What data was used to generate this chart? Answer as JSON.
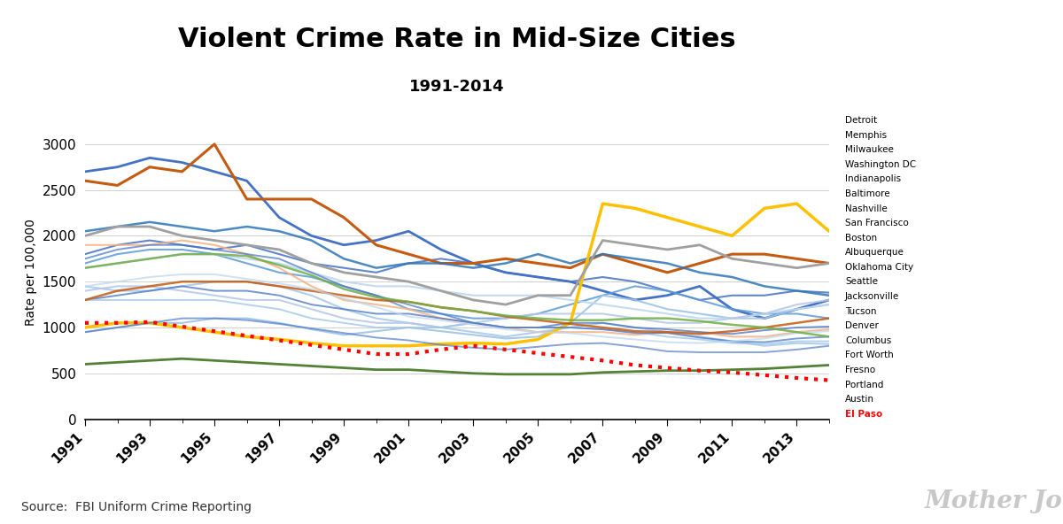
{
  "title": "Violent Crime Rate in Mid-Size Cities",
  "subtitle": "1991-2014",
  "ylabel": "Rate per 100,000",
  "source": "Source:  FBI Uniform Crime Reporting",
  "watermark": "Mother Jones",
  "years": [
    1991,
    1992,
    1993,
    1994,
    1995,
    1996,
    1997,
    1998,
    1999,
    2000,
    2001,
    2002,
    2003,
    2004,
    2005,
    2006,
    2007,
    2008,
    2009,
    2010,
    2011,
    2012,
    2013,
    2014
  ],
  "cities": {
    "Detroit": [
      2700,
      2750,
      2850,
      2800,
      2700,
      2600,
      2200,
      2000,
      1900,
      1950,
      2050,
      1850,
      1700,
      1600,
      1550,
      1500,
      1400,
      1300,
      1350,
      1450,
      1200,
      1100,
      1200,
      1300
    ],
    "Memphis": [
      1800,
      1900,
      1950,
      1900,
      1850,
      1900,
      1800,
      1700,
      1650,
      1600,
      1700,
      1750,
      1700,
      1600,
      1550,
      1500,
      1550,
      1500,
      1400,
      1300,
      1350,
      1350,
      1400,
      1380
    ],
    "Milwaukee": [
      1700,
      1800,
      1850,
      1850,
      1800,
      1700,
      1600,
      1550,
      1450,
      1350,
      1200,
      1150,
      1100,
      1100,
      1150,
      1250,
      1350,
      1450,
      1400,
      1300,
      1200,
      1150,
      1150,
      1100
    ],
    "Washington DC": [
      2600,
      2550,
      2750,
      2700,
      3000,
      2400,
      2400,
      2400,
      2200,
      1900,
      1800,
      1700,
      1700,
      1750,
      1700,
      1650,
      1800,
      1700,
      1600,
      1700,
      1800,
      1800,
      1750,
      1700
    ],
    "Indianapolis": [
      950,
      1000,
      1050,
      1050,
      1100,
      1100,
      1050,
      980,
      920,
      960,
      1000,
      960,
      920,
      880,
      900,
      1050,
      1350,
      1300,
      1200,
      1150,
      1100,
      1100,
      1200,
      1250
    ],
    "Baltimore": [
      2050,
      2100,
      2150,
      2100,
      2050,
      2100,
      2050,
      1950,
      1750,
      1650,
      1700,
      1700,
      1650,
      1700,
      1800,
      1700,
      1800,
      1750,
      1700,
      1600,
      1550,
      1450,
      1400,
      1350
    ],
    "Nashville": [
      1650,
      1700,
      1750,
      1800,
      1800,
      1750,
      1700,
      1600,
      1500,
      1450,
      1450,
      1400,
      1350,
      1350,
      1350,
      1300,
      1250,
      1200,
      1150,
      1100,
      1100,
      1150,
      1200,
      1250
    ],
    "San Francisco": [
      1450,
      1400,
      1400,
      1450,
      1500,
      1500,
      1450,
      1350,
      1200,
      1100,
      1050,
      1000,
      950,
      900,
      950,
      1000,
      1050,
      1000,
      950,
      900,
      850,
      800,
      830,
      820
    ],
    "Boston": [
      1900,
      1900,
      1900,
      1950,
      1900,
      1800,
      1650,
      1450,
      1300,
      1250,
      1200,
      1100,
      1050,
      1000,
      950,
      950,
      950,
      920,
      950,
      950,
      900,
      900,
      950,
      980
    ],
    "Albuquerque": [
      1400,
      1450,
      1450,
      1400,
      1350,
      1300,
      1300,
      1200,
      1100,
      1050,
      1050,
      1000,
      1050,
      1100,
      1150,
      1150,
      1150,
      1100,
      1050,
      1050,
      1100,
      1150,
      1250,
      1300
    ],
    "Oklahoma City": [
      1000,
      1050,
      1050,
      1000,
      950,
      900,
      870,
      830,
      800,
      800,
      800,
      820,
      830,
      820,
      870,
      1050,
      2350,
      2300,
      2200,
      2100,
      2000,
      2300,
      2350,
      2050
    ],
    "Seattle": [
      2000,
      2100,
      2100,
      2000,
      1950,
      1900,
      1850,
      1700,
      1600,
      1550,
      1500,
      1400,
      1300,
      1250,
      1350,
      1350,
      1950,
      1900,
      1850,
      1900,
      1750,
      1700,
      1650,
      1700
    ],
    "Jacksonville": [
      1300,
      1350,
      1400,
      1450,
      1400,
      1400,
      1350,
      1250,
      1200,
      1150,
      1150,
      1100,
      1050,
      1000,
      1000,
      1050,
      1050,
      1000,
      980,
      950,
      930,
      970,
      1000,
      1010
    ],
    "Tucson": [
      1300,
      1300,
      1300,
      1300,
      1300,
      1250,
      1200,
      1100,
      1050,
      1000,
      1000,
      1000,
      1050,
      1000,
      1000,
      1000,
      980,
      950,
      900,
      870,
      830,
      820,
      850,
      850
    ],
    "Denver": [
      1750,
      1850,
      1900,
      1900,
      1850,
      1800,
      1750,
      1600,
      1450,
      1350,
      1250,
      1150,
      1050,
      1000,
      1000,
      1000,
      980,
      940,
      940,
      890,
      850,
      840,
      880,
      900
    ],
    "Columbus": [
      1300,
      1400,
      1450,
      1500,
      1500,
      1500,
      1450,
      1400,
      1350,
      1300,
      1280,
      1220,
      1180,
      1120,
      1080,
      1040,
      1000,
      960,
      950,
      930,
      960,
      1000,
      1050,
      1100
    ],
    "Fort Worth": [
      1450,
      1500,
      1550,
      1580,
      1580,
      1530,
      1480,
      1420,
      1320,
      1220,
      1120,
      1080,
      1030,
      980,
      950,
      940,
      900,
      870,
      840,
      830,
      850,
      880,
      940,
      960
    ],
    "Fresno": [
      1650,
      1700,
      1750,
      1800,
      1800,
      1780,
      1680,
      1570,
      1420,
      1330,
      1280,
      1220,
      1180,
      1130,
      1100,
      1080,
      1080,
      1100,
      1100,
      1070,
      1030,
      1000,
      950,
      900
    ],
    "Portland": [
      950,
      1000,
      1050,
      1100,
      1100,
      1080,
      1040,
      990,
      940,
      890,
      860,
      810,
      780,
      760,
      790,
      820,
      830,
      790,
      740,
      730,
      730,
      730,
      760,
      800
    ],
    "Austin": [
      600,
      620,
      640,
      660,
      640,
      620,
      600,
      580,
      560,
      540,
      540,
      520,
      500,
      490,
      490,
      490,
      510,
      520,
      530,
      530,
      540,
      550,
      570,
      590
    ],
    "El Paso": [
      1050,
      1050,
      1060,
      1010,
      960,
      910,
      860,
      810,
      760,
      710,
      710,
      760,
      800,
      760,
      720,
      680,
      640,
      590,
      560,
      530,
      510,
      480,
      450,
      425
    ]
  },
  "city_styles": {
    "Detroit": {
      "color": "#4472c4",
      "lw": 2.0,
      "alpha": 1.0,
      "ls": "solid"
    },
    "Memphis": {
      "color": "#4472c4",
      "lw": 1.5,
      "alpha": 0.85,
      "ls": "solid"
    },
    "Milwaukee": {
      "color": "#5b9bd5",
      "lw": 1.5,
      "alpha": 0.85,
      "ls": "solid"
    },
    "Washington DC": {
      "color": "#c55a11",
      "lw": 2.2,
      "alpha": 1.0,
      "ls": "solid"
    },
    "Indianapolis": {
      "color": "#9dc3e6",
      "lw": 1.5,
      "alpha": 0.9,
      "ls": "solid"
    },
    "Baltimore": {
      "color": "#2e75b6",
      "lw": 1.8,
      "alpha": 0.85,
      "ls": "solid"
    },
    "Nashville": {
      "color": "#bdd7ee",
      "lw": 1.5,
      "alpha": 0.9,
      "ls": "solid"
    },
    "San Francisco": {
      "color": "#9dc3e6",
      "lw": 1.5,
      "alpha": 0.8,
      "ls": "solid"
    },
    "Boston": {
      "color": "#f4b183",
      "lw": 1.5,
      "alpha": 0.85,
      "ls": "solid"
    },
    "Albuquerque": {
      "color": "#b4c7e7",
      "lw": 1.5,
      "alpha": 0.85,
      "ls": "solid"
    },
    "Oklahoma City": {
      "color": "#ffc000",
      "lw": 2.5,
      "alpha": 1.0,
      "ls": "solid"
    },
    "Seattle": {
      "color": "#a0a0a0",
      "lw": 2.0,
      "alpha": 1.0,
      "ls": "solid"
    },
    "Jacksonville": {
      "color": "#4472c4",
      "lw": 1.4,
      "alpha": 0.75,
      "ls": "solid"
    },
    "Tucson": {
      "color": "#9dc3e6",
      "lw": 1.4,
      "alpha": 0.75,
      "ls": "solid"
    },
    "Denver": {
      "color": "#4472c4",
      "lw": 1.4,
      "alpha": 0.7,
      "ls": "solid"
    },
    "Columbus": {
      "color": "#c55a11",
      "lw": 1.8,
      "alpha": 0.85,
      "ls": "solid"
    },
    "Fort Worth": {
      "color": "#bdd7ee",
      "lw": 1.4,
      "alpha": 0.75,
      "ls": "solid"
    },
    "Fresno": {
      "color": "#70ad47",
      "lw": 1.8,
      "alpha": 0.85,
      "ls": "solid"
    },
    "Portland": {
      "color": "#4472c4",
      "lw": 1.4,
      "alpha": 0.65,
      "ls": "solid"
    },
    "Austin": {
      "color": "#548235",
      "lw": 2.0,
      "alpha": 1.0,
      "ls": "solid"
    },
    "El Paso": {
      "color": "#ff0000",
      "lw": 3.0,
      "alpha": 1.0,
      "ls": "dotted"
    }
  },
  "legend_cities": [
    "Detroit",
    "Memphis",
    "Milwaukee",
    "Washington DC",
    "Indianapolis",
    "Baltimore",
    "Nashville",
    "San Francisco",
    "Boston",
    "Albuquerque",
    "Oklahoma City",
    "Seattle",
    "Jacksonville",
    "Tucson",
    "Denver",
    "Columbus",
    "Fort Worth",
    "Fresno",
    "Portland",
    "Austin",
    "El Paso"
  ],
  "ylim": [
    0,
    3200
  ],
  "yticks": [
    0,
    500,
    1000,
    1500,
    2000,
    2500,
    3000
  ],
  "background_color": "#ffffff"
}
